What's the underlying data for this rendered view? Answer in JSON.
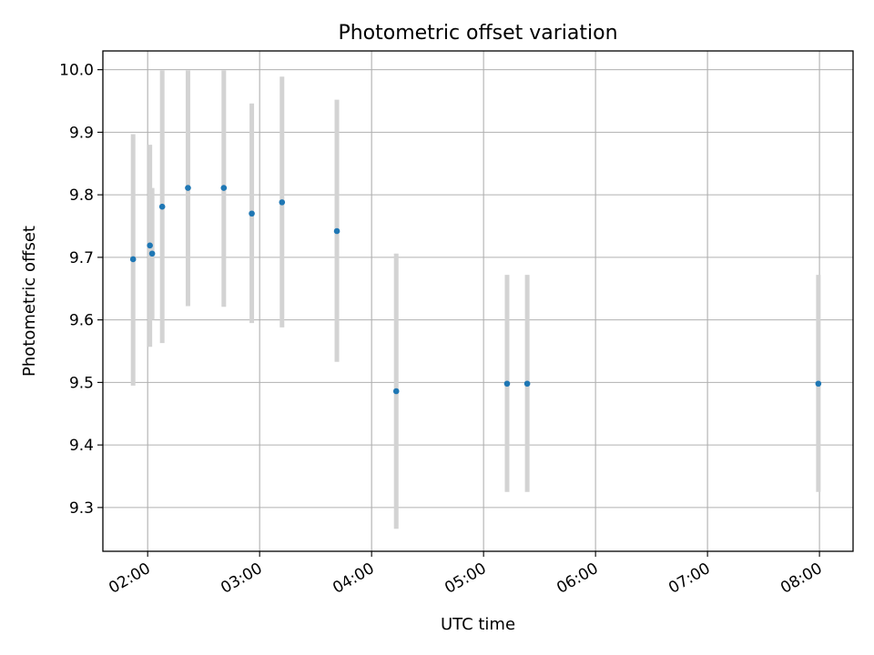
{
  "chart_data": {
    "type": "scatter",
    "title": "Photometric offset variation",
    "xlabel": "UTC time",
    "ylabel": "Photometric offset",
    "x_unit": "hours UTC",
    "xlim": [
      1.6,
      8.3
    ],
    "ylim": [
      9.23,
      10.03
    ],
    "grid": true,
    "x_ticks": [
      {
        "value": 2,
        "label": "02:00"
      },
      {
        "value": 3,
        "label": "03:00"
      },
      {
        "value": 4,
        "label": "04:00"
      },
      {
        "value": 5,
        "label": "05:00"
      },
      {
        "value": 6,
        "label": "06:00"
      },
      {
        "value": 7,
        "label": "07:00"
      },
      {
        "value": 8,
        "label": "08:00"
      }
    ],
    "y_ticks": [
      {
        "value": 9.3,
        "label": "9.3"
      },
      {
        "value": 9.4,
        "label": "9.4"
      },
      {
        "value": 9.5,
        "label": "9.5"
      },
      {
        "value": 9.6,
        "label": "9.6"
      },
      {
        "value": 9.7,
        "label": "9.7"
      },
      {
        "value": 9.8,
        "label": "9.8"
      },
      {
        "value": 9.9,
        "label": "9.9"
      },
      {
        "value": 10.0,
        "label": "10.0"
      }
    ],
    "points": [
      {
        "x": 1.87,
        "y": 9.697,
        "low": 9.495,
        "high": 9.897
      },
      {
        "x": 2.02,
        "y": 9.719,
        "low": 9.557,
        "high": 9.88
      },
      {
        "x": 2.04,
        "y": 9.706,
        "low": 9.6,
        "high": 9.811
      },
      {
        "x": 2.13,
        "y": 9.781,
        "low": 9.563,
        "high": 9.999
      },
      {
        "x": 2.36,
        "y": 9.811,
        "low": 9.622,
        "high": 9.999
      },
      {
        "x": 2.68,
        "y": 9.811,
        "low": 9.621,
        "high": 9.999
      },
      {
        "x": 2.93,
        "y": 9.77,
        "low": 9.595,
        "high": 9.946
      },
      {
        "x": 3.2,
        "y": 9.788,
        "low": 9.588,
        "high": 9.989
      },
      {
        "x": 3.69,
        "y": 9.742,
        "low": 9.533,
        "high": 9.952
      },
      {
        "x": 4.22,
        "y": 9.486,
        "low": 9.266,
        "high": 9.706
      },
      {
        "x": 5.21,
        "y": 9.498,
        "low": 9.325,
        "high": 9.672
      },
      {
        "x": 5.39,
        "y": 9.498,
        "low": 9.325,
        "high": 9.672
      },
      {
        "x": 7.99,
        "y": 9.498,
        "low": 9.325,
        "high": 9.672
      }
    ],
    "colors": {
      "point": "#1f77b4",
      "errorbar": "#d3d3d3",
      "grid": "#b0b0b0",
      "axes": "#000000"
    }
  }
}
